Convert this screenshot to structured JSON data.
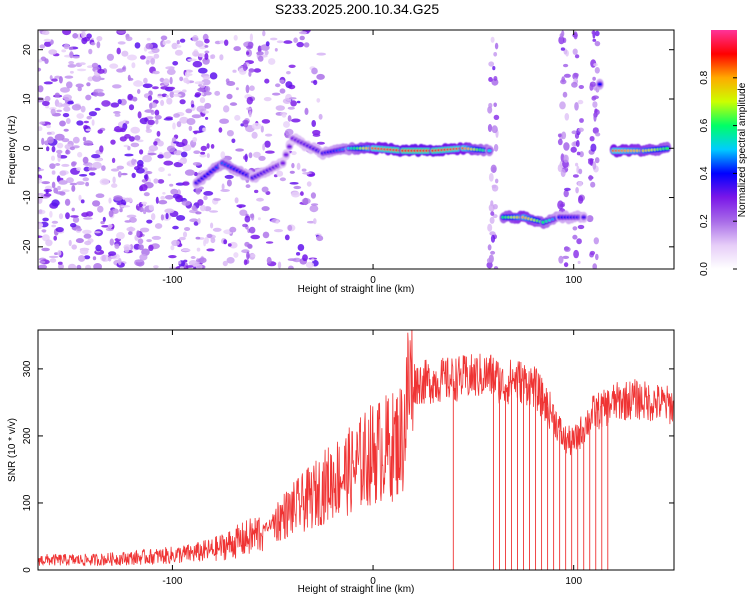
{
  "figure_title": "S233.2025.200.10.34.G25",
  "chart_data": [
    {
      "type": "heatmap",
      "title": "S233.2025.200.10.34.G25",
      "xlabel": "Height of straight line (km)",
      "ylabel": "Frequency (Hz)",
      "xlim": [
        -167,
        150
      ],
      "ylim": [
        -24.5,
        24
      ],
      "xticks": [
        -100,
        0,
        100
      ],
      "yticks": [
        -20,
        -10,
        0,
        10,
        20
      ],
      "colorbar": {
        "label": "Normalized spectral amplitude",
        "range": [
          0,
          1
        ],
        "ticks": [
          "0.0",
          "0.2",
          "0.4",
          "0.6",
          "0.8"
        ],
        "colors": [
          "#ffffff",
          "#e6cdf8",
          "#a86be8",
          "#7a17e8",
          "#0000ff",
          "#00ccff",
          "#00ff66",
          "#ccff00",
          "#ffaa00",
          "#ff0000",
          "#ff3399"
        ]
      },
      "ridge": [
        {
          "x": -88,
          "y": -7,
          "amp": 0.35
        },
        {
          "x": -75,
          "y": -3,
          "amp": 0.45
        },
        {
          "x": -60,
          "y": -6,
          "amp": 0.35
        },
        {
          "x": -45,
          "y": -3,
          "amp": 0.3
        },
        {
          "x": -40,
          "y": 2,
          "amp": 0.3
        },
        {
          "x": -25,
          "y": -1,
          "amp": 0.35
        },
        {
          "x": -12,
          "y": 0,
          "amp": 0.5
        },
        {
          "x": 0,
          "y": 0,
          "amp": 0.85
        },
        {
          "x": 15,
          "y": -0.5,
          "amp": 0.9
        },
        {
          "x": 30,
          "y": -0.5,
          "amp": 0.9
        },
        {
          "x": 45,
          "y": 0,
          "amp": 0.85
        },
        {
          "x": 58,
          "y": -0.5,
          "amp": 0.5
        },
        {
          "x": 65,
          "y": -14,
          "amp": 0.6
        },
        {
          "x": 75,
          "y": -14,
          "amp": 0.8
        },
        {
          "x": 85,
          "y": -15,
          "amp": 0.6
        },
        {
          "x": 93,
          "y": -14,
          "amp": 0.4
        },
        {
          "x": 105,
          "y": -14,
          "amp": 0.35
        },
        {
          "x": 113,
          "y": 13,
          "amp": 0.4
        },
        {
          "x": 120,
          "y": -0.5,
          "amp": 0.85
        },
        {
          "x": 135,
          "y": -0.5,
          "amp": 0.75
        },
        {
          "x": 148,
          "y": 0,
          "amp": 0.6
        }
      ]
    },
    {
      "type": "line",
      "xlabel": "Height of straight line (km)",
      "ylabel": "SNR (10 * v/v)",
      "xlim": [
        -167,
        150
      ],
      "ylim": [
        0,
        358
      ],
      "xticks": [
        -100,
        0,
        100
      ],
      "yticks": [
        0,
        100,
        200,
        300
      ],
      "color": "#ef3434",
      "series": [
        {
          "x": [
            -167,
            -140,
            -120,
            -100,
            -90,
            -80,
            -70,
            -60,
            -50,
            -40,
            -30,
            -20,
            -10,
            0,
            10,
            15,
            18,
            25,
            40,
            55,
            60,
            65,
            70,
            80,
            90,
            95,
            100,
            110,
            115,
            120,
            130,
            140,
            150
          ],
          "values": [
            15,
            15,
            18,
            22,
            25,
            30,
            40,
            50,
            70,
            90,
            110,
            135,
            150,
            175,
            185,
            200,
            280,
            280,
            285,
            290,
            290,
            275,
            285,
            275,
            230,
            195,
            190,
            235,
            240,
            250,
            255,
            250,
            245
          ]
        }
      ],
      "dropouts_x": [
        40,
        60,
        63,
        66,
        69,
        72,
        75,
        78,
        81,
        84,
        87,
        90,
        93,
        96,
        99,
        102,
        105,
        108,
        111,
        114,
        117
      ]
    }
  ]
}
